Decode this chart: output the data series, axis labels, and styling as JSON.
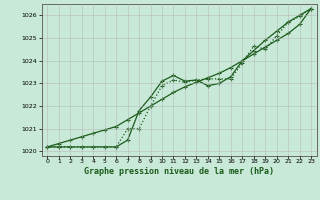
{
  "title": "Graphe pression niveau de la mer (hPa)",
  "background_color": "#c8e8d8",
  "plot_bg_color": "#c8e8d8",
  "line_color": "#1a5c1a",
  "grid_color": "#b0b0b0",
  "ylim": [
    1019.8,
    1026.5
  ],
  "xlim": [
    -0.5,
    23.5
  ],
  "yticks": [
    1020,
    1021,
    1022,
    1023,
    1024,
    1025,
    1026
  ],
  "xticks": [
    0,
    1,
    2,
    3,
    4,
    5,
    6,
    7,
    8,
    9,
    10,
    11,
    12,
    13,
    14,
    15,
    16,
    17,
    18,
    19,
    20,
    21,
    22,
    23
  ],
  "series_straight": [
    1020.2,
    1020.35,
    1020.5,
    1020.65,
    1020.8,
    1020.95,
    1021.1,
    1021.4,
    1021.7,
    1022.0,
    1022.3,
    1022.6,
    1022.85,
    1023.05,
    1023.25,
    1023.45,
    1023.7,
    1024.0,
    1024.3,
    1024.6,
    1024.9,
    1025.2,
    1025.6,
    1026.3
  ],
  "series_high": [
    1020.2,
    1020.2,
    1020.2,
    1020.2,
    1020.2,
    1020.2,
    1020.2,
    1020.5,
    1021.8,
    1022.4,
    1023.1,
    1023.35,
    1023.1,
    1023.15,
    1022.9,
    1023.0,
    1023.3,
    1024.0,
    1024.45,
    1024.9,
    1025.3,
    1025.7,
    1026.0,
    1026.3
  ],
  "series_low": [
    1020.2,
    1020.2,
    1020.2,
    1020.2,
    1020.2,
    1020.2,
    1020.2,
    1021.0,
    1021.0,
    1022.0,
    1022.9,
    1023.15,
    1023.05,
    1023.15,
    1023.2,
    1023.2,
    1023.2,
    1023.9,
    1024.65,
    1024.5,
    1025.1,
    1025.7,
    1025.95,
    1026.3
  ]
}
